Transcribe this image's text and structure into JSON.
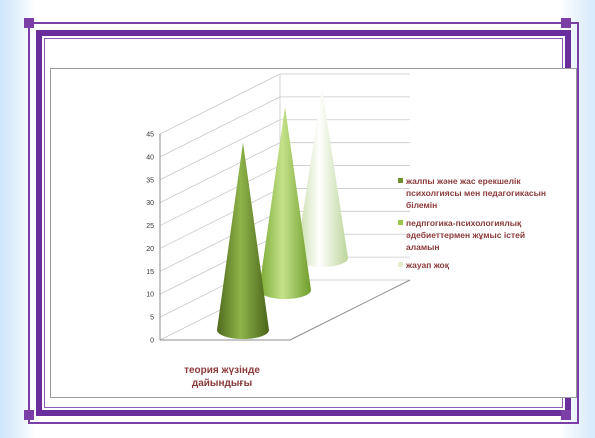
{
  "colors": {
    "frame": "#6a2e9c",
    "series_1": "#6e8f2e",
    "series_2": "#9ac64a",
    "series_3": "#e2efcf",
    "text": "#8b3a3a"
  },
  "chart_data": {
    "type": "bar",
    "style": "3d-cone",
    "categories": [
      "теория жүзінде дайындығы"
    ],
    "series": [
      {
        "name": "жалпы және жас ерекшелік психолгиясы мен педагогикасын білемін",
        "values": [
          41
        ]
      },
      {
        "name": "педпгогика-психологиялық әдебиеттермен жұмыс істей аламын",
        "values": [
          40
        ]
      },
      {
        "name": "жауап жоқ",
        "values": [
          37
        ]
      }
    ],
    "ylim": [
      0,
      45
    ],
    "yticks": [
      "0",
      "5",
      "10",
      "15",
      "20",
      "25",
      "30",
      "35",
      "40",
      "45"
    ],
    "grid": true,
    "legend": "right",
    "legend_lines": [
      [
        "жалпы және жас ерекшелік",
        "психолгиясы мен педагогикасын",
        "білемін"
      ],
      [
        "педпгогика-психологиялық",
        "әдебиеттермен жұмыс істей",
        "аламын"
      ],
      [
        "жауап жоқ"
      ]
    ],
    "category_lines": [
      "теория жүзінде",
      "дайындығы"
    ]
  }
}
